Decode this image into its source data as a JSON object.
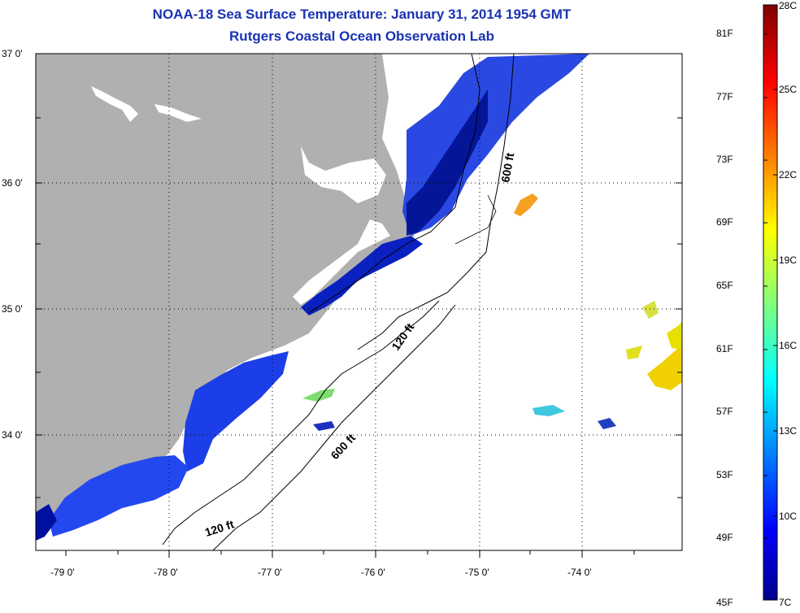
{
  "title": "NOAA-18 Sea Surface Temperature:  January 31, 2014 1954 GMT",
  "subtitle": "Rutgers Coastal Ocean Observation Lab",
  "map": {
    "lat_labels": [
      "37 0'",
      "36 0'",
      "35 0'",
      "34 0'"
    ],
    "lon_labels": [
      "-79 0'",
      "-78 0'",
      "-77 0'",
      "-76 0'",
      "-75 0'",
      "-74 0'"
    ],
    "contour_labels": [
      "600 ft",
      "120 ft",
      "600 ft",
      "120 ft"
    ],
    "colors": {
      "land": "#b0b0b0",
      "ocean": "#ffffff",
      "contour": "#000000"
    }
  },
  "colorbar": {
    "fahrenheit": [
      "81F",
      "77F",
      "73F",
      "69F",
      "65F",
      "61F",
      "57F",
      "53F",
      "49F",
      "45F"
    ],
    "celsius": [
      "28C",
      "25C",
      "22C",
      "19C",
      "16C",
      "13C",
      "10C",
      "7C"
    ],
    "range_c": [
      7,
      28
    ],
    "range_f": [
      45,
      82
    ]
  }
}
